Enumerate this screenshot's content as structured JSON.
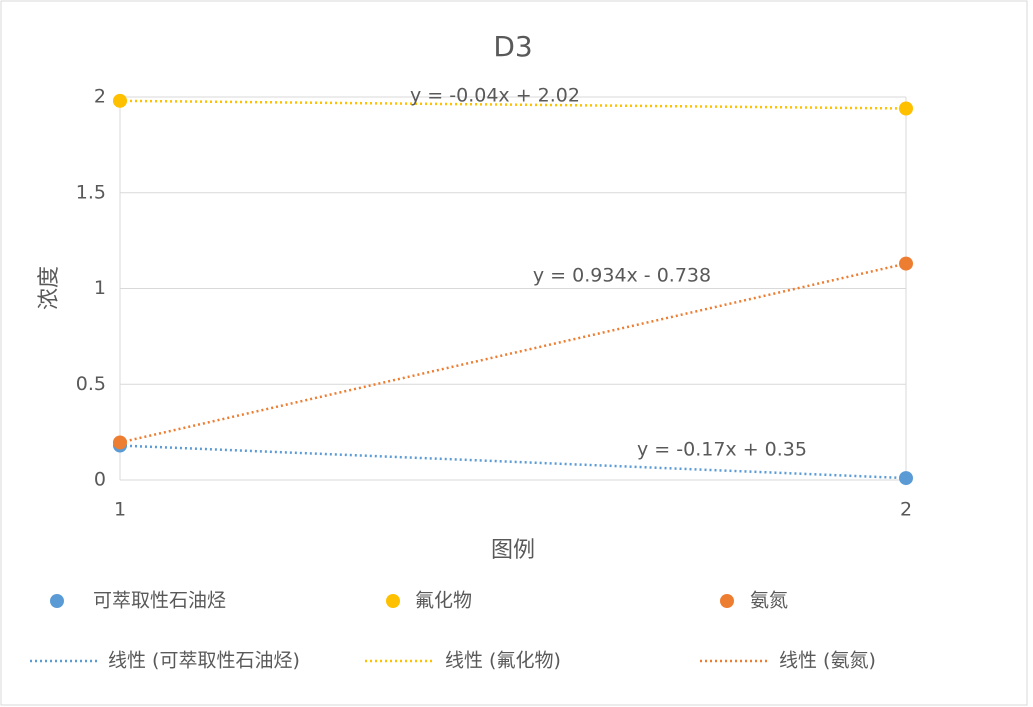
{
  "chart_data": {
    "type": "scatter",
    "title": "D3",
    "x_label": "图例",
    "y_label": "浓度",
    "x": [
      1,
      2
    ],
    "xlim": [
      1,
      2
    ],
    "xticks": [
      1,
      2
    ],
    "ylim": [
      0,
      2
    ],
    "yticks": [
      0,
      0.5,
      1,
      1.5,
      2
    ],
    "grid": true,
    "series": [
      {
        "name": "可萃取性石油烃",
        "color": "#5b9bd5",
        "values": [
          0.18,
          0.01
        ],
        "trendline": {
          "name": "线性 (可萃取性石油烃)",
          "equation": "y = -0.17x + 0.35"
        }
      },
      {
        "name": "氟化物",
        "color": "#ffc000",
        "values": [
          1.98,
          1.94
        ],
        "trendline": {
          "name": "线性 (氟化物)",
          "equation": "y = -0.04x + 2.02"
        }
      },
      {
        "name": "氨氮",
        "color": "#ed7d31",
        "values": [
          0.196,
          1.13
        ],
        "trendline": {
          "name": "线性 (氨氮)",
          "equation": "y = 0.934x - 0.738"
        }
      }
    ]
  }
}
